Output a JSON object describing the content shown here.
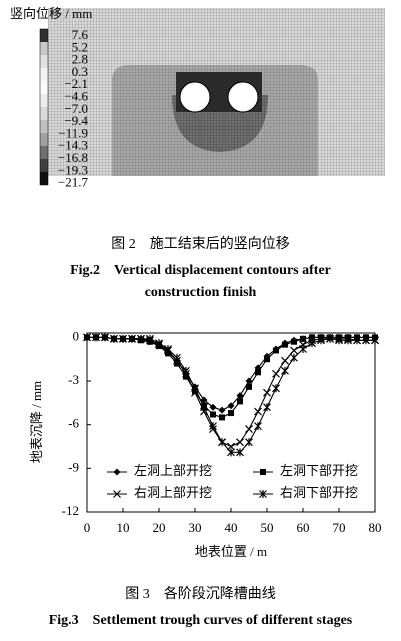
{
  "figure2": {
    "legend_title": "竖向位移 / mm",
    "legend_levels": [
      "7.6",
      "5.2",
      "2.8",
      "0.3",
      "−2.1",
      "−4.6",
      "−7.0",
      "−9.4",
      "−11.9",
      "−14.3",
      "−16.8",
      "−19.3",
      "−21.7"
    ],
    "caption_cn": "图 2　施工结束后的竖向位移",
    "caption_en": "Fig.2　Vertical displacement contours after construction finish"
  },
  "chart_data": {
    "type": "line",
    "x_label": "地表位置 / m",
    "y_label": "地表沉降 / mm",
    "x": [
      0,
      2.5,
      5,
      7.5,
      10,
      12.5,
      15,
      17.5,
      20,
      22.5,
      25,
      27.5,
      30,
      32.5,
      35,
      37.5,
      40,
      42.5,
      45,
      47.5,
      50,
      52.5,
      55,
      57.5,
      60,
      62.5,
      65,
      67.5,
      70,
      72.5,
      75,
      77.5,
      80
    ],
    "series": [
      {
        "name": "左洞上部开挖",
        "color": "#000000",
        "marker": "diamond",
        "values": [
          0,
          0,
          0,
          -0.1,
          -0.1,
          -0.1,
          -0.1,
          -0.3,
          -0.5,
          -1.0,
          -1.6,
          -2.5,
          -3.4,
          -4.3,
          -4.8,
          -5.0,
          -4.7,
          -4.0,
          -3.0,
          -2.1,
          -1.3,
          -0.8,
          -0.4,
          -0.2,
          -0.1,
          0,
          0,
          0,
          0,
          0,
          0,
          0,
          0
        ]
      },
      {
        "name": "左洞下部开挖",
        "color": "#000000",
        "marker": "square",
        "values": [
          0,
          0,
          0,
          -0.1,
          -0.1,
          -0.1,
          -0.2,
          -0.3,
          -0.6,
          -1.1,
          -1.8,
          -2.7,
          -3.7,
          -4.7,
          -5.3,
          -5.5,
          -5.2,
          -4.4,
          -3.4,
          -2.4,
          -1.5,
          -0.9,
          -0.5,
          -0.3,
          -0.1,
          0,
          0,
          0,
          0,
          0,
          0,
          0,
          0
        ]
      },
      {
        "name": "右洞上部开挖",
        "color": "#000000",
        "marker": "x",
        "values": [
          0,
          0,
          0,
          -0.1,
          -0.1,
          -0.1,
          -0.1,
          -0.2,
          -0.5,
          -0.9,
          -1.6,
          -2.5,
          -3.8,
          -5.1,
          -6.3,
          -7.2,
          -7.5,
          -7.2,
          -6.3,
          -5.1,
          -3.8,
          -2.5,
          -1.6,
          -0.9,
          -0.5,
          -0.2,
          -0.1,
          -0.1,
          -0.1,
          -0.1,
          -0.2,
          -0.2,
          -0.2
        ]
      },
      {
        "name": "右洞下部开挖",
        "color": "#000000",
        "marker": "asterisk",
        "values": [
          0,
          0,
          0,
          -0.1,
          -0.1,
          -0.1,
          -0.1,
          -0.1,
          -0.4,
          -0.8,
          -1.4,
          -2.3,
          -3.5,
          -4.8,
          -6.1,
          -7.2,
          -7.9,
          -7.9,
          -7.2,
          -6.1,
          -4.8,
          -3.5,
          -2.3,
          -1.4,
          -0.8,
          -0.4,
          -0.2,
          -0.1,
          -0.2,
          -0.2,
          -0.2,
          -0.2,
          -0.2
        ]
      }
    ],
    "xlim": [
      0,
      80
    ],
    "xticks": [
      0,
      10,
      20,
      30,
      40,
      50,
      60,
      70,
      80
    ],
    "ylim": [
      -12,
      0.3
    ],
    "yticks": [
      0,
      -3,
      -6,
      -9,
      -12
    ],
    "grid": false,
    "legend": "lower center"
  },
  "figure3": {
    "caption_cn": "图 3　各阶段沉降槽曲线",
    "caption_en": "Fig.3　Settlement trough curves of different stages"
  }
}
